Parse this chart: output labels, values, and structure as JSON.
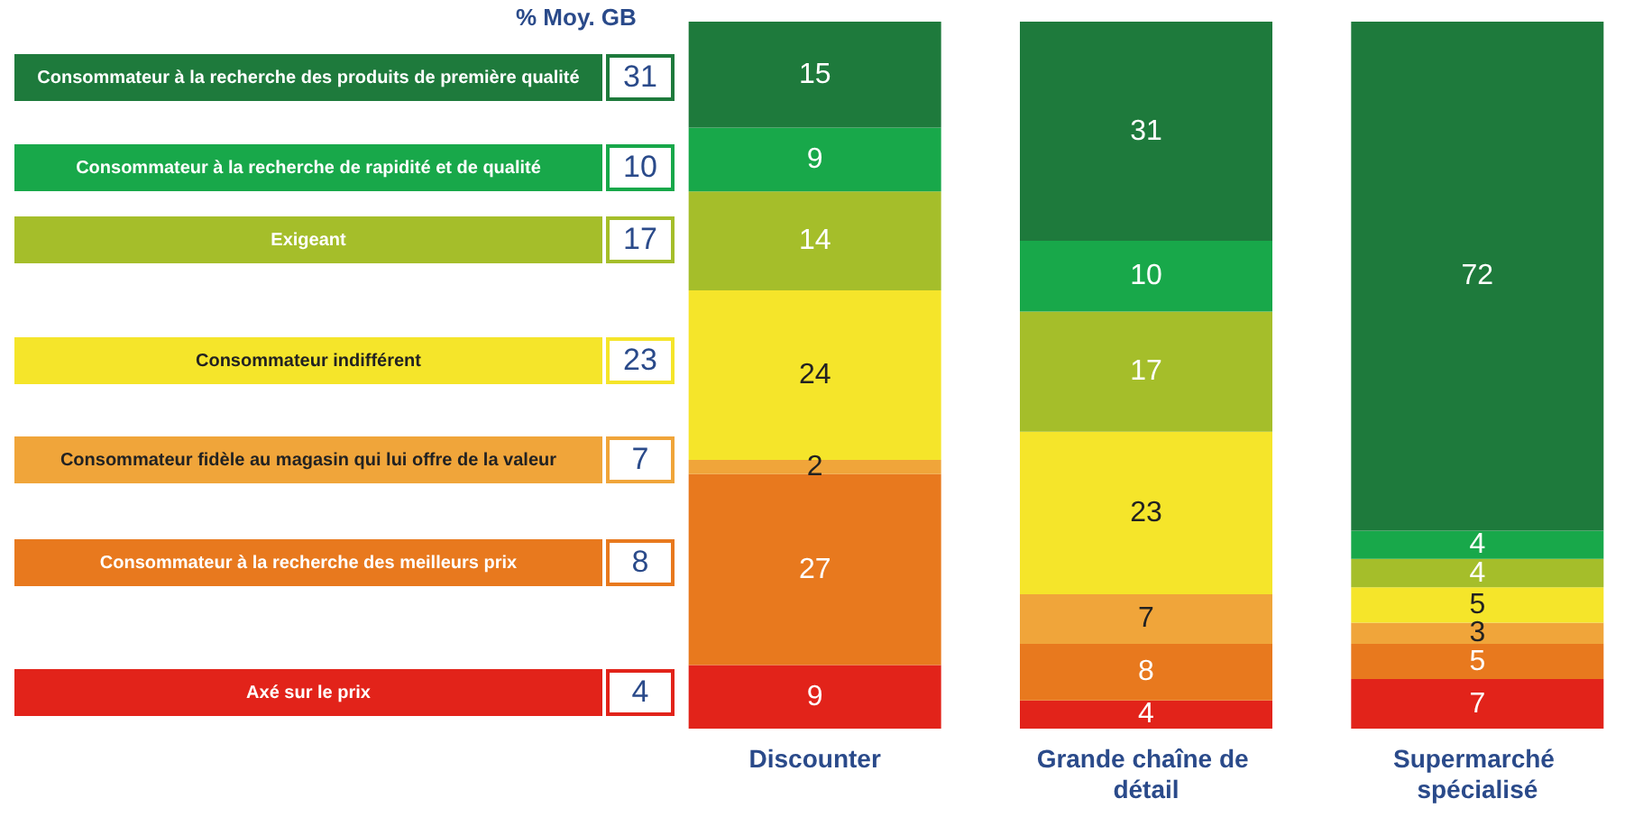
{
  "chart_data": {
    "type": "bar",
    "stacked": true,
    "data_labels": true,
    "legend": "left",
    "legend_title": "% Moy. GB",
    "categories": [
      "Discounter",
      "Grande chaîne de détail",
      "Supermarché spécialisé"
    ],
    "series": [
      {
        "name": "Axé sur le prix",
        "color": "#e2231a",
        "values": [
          9,
          4,
          7
        ]
      },
      {
        "name": "Consommateur à la recherche des meilleurs prix",
        "color": "#e8791e",
        "values": [
          27,
          8,
          5
        ]
      },
      {
        "name": "Consommateur fidèle au magasin qui lui offre de la valeur",
        "color": "#f0a53a",
        "values": [
          2,
          7,
          3
        ]
      },
      {
        "name": "Consommateur indifférent",
        "color": "#f5e52a",
        "values": [
          24,
          23,
          5
        ]
      },
      {
        "name": "Exigeant",
        "color": "#a5be2a",
        "values": [
          14,
          17,
          4
        ]
      },
      {
        "name": "Consommateur à la recherche de rapidité et de qualité",
        "color": "#18a84a",
        "values": [
          9,
          10,
          4
        ]
      },
      {
        "name": "Consommateur à la recherche des produits de première qualité",
        "color": "#1e7a3c",
        "values": [
          15,
          31,
          72
        ]
      }
    ],
    "annotations": [
      "31",
      "10",
      "17",
      "23",
      "7",
      "8",
      "4"
    ]
  }
}
